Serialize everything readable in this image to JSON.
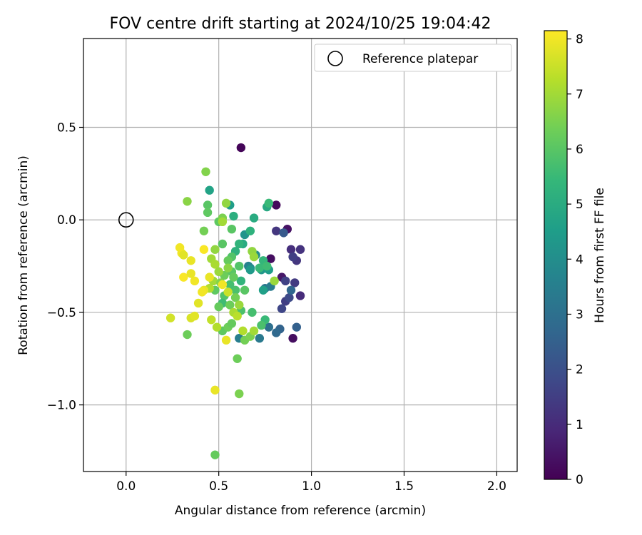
{
  "chart_data": {
    "type": "scatter",
    "title": "FOV centre drift starting at 2024/10/25 19:04:42",
    "xlabel": "Angular distance from reference (arcmin)",
    "ylabel": "Rotation from reference (arcmin)",
    "xlim": [
      -0.23,
      2.11
    ],
    "ylim": [
      -1.36,
      0.98
    ],
    "xticks": [
      0.0,
      0.5,
      1.0,
      1.5,
      2.0
    ],
    "xtick_labels": [
      "0.0",
      "0.5",
      "1.0",
      "1.5",
      "2.0"
    ],
    "yticks": [
      0.5,
      0.0,
      -0.5,
      -1.0
    ],
    "ytick_labels": [
      "0.5",
      "0.0",
      "−0.5",
      "−1.0"
    ],
    "grid": true,
    "legend": {
      "placement": "top-right",
      "entries": [
        "Reference platepar"
      ]
    },
    "reference_point": {
      "x": 0.0,
      "y": 0.0,
      "marker": "open-circle",
      "color": "#000000"
    },
    "colorbar": {
      "label": "Hours from first FF file",
      "range": [
        0,
        8.15
      ],
      "ticks": [
        0,
        1,
        2,
        3,
        4,
        5,
        6,
        7,
        8
      ],
      "tick_labels": [
        "0",
        "1",
        "2",
        "3",
        "4",
        "5",
        "6",
        "7",
        "8"
      ],
      "colormap": "viridis",
      "colormap_stops": [
        "#440154",
        "#482878",
        "#3e4a89",
        "#31688e",
        "#26828e",
        "#1f9e89",
        "#35b779",
        "#6ece58",
        "#b5de2b",
        "#fde725"
      ]
    },
    "points": [
      {
        "x": 0.62,
        "y": 0.39,
        "h": 0.1
      },
      {
        "x": 0.81,
        "y": 0.08,
        "h": 0.2
      },
      {
        "x": 0.87,
        "y": -0.05,
        "h": 0.4
      },
      {
        "x": 0.78,
        "y": -0.21,
        "h": 0.3
      },
      {
        "x": 0.84,
        "y": -0.31,
        "h": 0.5
      },
      {
        "x": 0.9,
        "y": -0.64,
        "h": 0.3
      },
      {
        "x": 0.94,
        "y": -0.16,
        "h": 1.2
      },
      {
        "x": 0.89,
        "y": -0.16,
        "h": 1.1
      },
      {
        "x": 0.92,
        "y": -0.22,
        "h": 1.3
      },
      {
        "x": 0.9,
        "y": -0.2,
        "h": 1.5
      },
      {
        "x": 0.94,
        "y": -0.41,
        "h": 1.0
      },
      {
        "x": 0.91,
        "y": -0.34,
        "h": 1.4
      },
      {
        "x": 0.86,
        "y": -0.33,
        "h": 1.6
      },
      {
        "x": 0.81,
        "y": -0.06,
        "h": 1.3
      },
      {
        "x": 0.86,
        "y": -0.44,
        "h": 1.5
      },
      {
        "x": 0.84,
        "y": -0.48,
        "h": 1.7
      },
      {
        "x": 0.88,
        "y": -0.42,
        "h": 1.8
      },
      {
        "x": 0.85,
        "y": -0.07,
        "h": 2.3
      },
      {
        "x": 0.92,
        "y": -0.58,
        "h": 2.5
      },
      {
        "x": 0.89,
        "y": -0.38,
        "h": 2.7
      },
      {
        "x": 0.83,
        "y": -0.59,
        "h": 2.6
      },
      {
        "x": 0.81,
        "y": -0.61,
        "h": 2.8
      },
      {
        "x": 0.77,
        "y": -0.58,
        "h": 3.0
      },
      {
        "x": 0.75,
        "y": -0.37,
        "h": 3.2
      },
      {
        "x": 0.78,
        "y": -0.36,
        "h": 3.4
      },
      {
        "x": 0.72,
        "y": -0.64,
        "h": 3.3
      },
      {
        "x": 0.61,
        "y": -0.64,
        "h": 3.5
      },
      {
        "x": 0.66,
        "y": -0.25,
        "h": 3.6
      },
      {
        "x": 0.67,
        "y": -0.26,
        "h": 3.8
      },
      {
        "x": 0.7,
        "y": -0.19,
        "h": 4.0
      },
      {
        "x": 0.64,
        "y": -0.08,
        "h": 4.2
      },
      {
        "x": 0.73,
        "y": -0.27,
        "h": 4.3
      },
      {
        "x": 0.77,
        "y": -0.27,
        "h": 4.5
      },
      {
        "x": 0.74,
        "y": -0.38,
        "h": 4.6
      },
      {
        "x": 0.67,
        "y": -0.27,
        "h": 4.4
      },
      {
        "x": 0.56,
        "y": 0.08,
        "h": 4.5
      },
      {
        "x": 0.45,
        "y": 0.16,
        "h": 4.7
      },
      {
        "x": 0.76,
        "y": 0.07,
        "h": 4.9
      },
      {
        "x": 0.69,
        "y": 0.01,
        "h": 5.0
      },
      {
        "x": 0.58,
        "y": 0.02,
        "h": 5.1
      },
      {
        "x": 0.63,
        "y": -0.13,
        "h": 5.0
      },
      {
        "x": 0.67,
        "y": -0.06,
        "h": 5.2
      },
      {
        "x": 0.61,
        "y": -0.13,
        "h": 5.3
      },
      {
        "x": 0.59,
        "y": -0.17,
        "h": 5.2
      },
      {
        "x": 0.62,
        "y": -0.33,
        "h": 5.3
      },
      {
        "x": 0.77,
        "y": 0.09,
        "h": 5.5
      },
      {
        "x": 0.74,
        "y": -0.22,
        "h": 5.4
      },
      {
        "x": 0.72,
        "y": -0.26,
        "h": 5.5
      },
      {
        "x": 0.76,
        "y": -0.25,
        "h": 5.6
      },
      {
        "x": 0.75,
        "y": -0.54,
        "h": 5.5
      },
      {
        "x": 0.68,
        "y": -0.5,
        "h": 5.7
      },
      {
        "x": 0.73,
        "y": -0.57,
        "h": 5.8
      },
      {
        "x": 0.57,
        "y": -0.2,
        "h": 5.9
      },
      {
        "x": 0.57,
        "y": -0.05,
        "h": 6.0
      },
      {
        "x": 0.44,
        "y": 0.08,
        "h": 6.0
      },
      {
        "x": 0.44,
        "y": 0.04,
        "h": 6.1
      },
      {
        "x": 0.5,
        "y": -0.01,
        "h": 6.1
      },
      {
        "x": 0.52,
        "y": -0.13,
        "h": 6.0
      },
      {
        "x": 0.59,
        "y": -0.38,
        "h": 5.8
      },
      {
        "x": 0.64,
        "y": -0.38,
        "h": 6.0
      },
      {
        "x": 0.56,
        "y": -0.35,
        "h": 5.7
      },
      {
        "x": 0.53,
        "y": -0.41,
        "h": 5.9
      },
      {
        "x": 0.52,
        "y": -0.45,
        "h": 5.6
      },
      {
        "x": 0.62,
        "y": -0.49,
        "h": 5.8
      },
      {
        "x": 0.5,
        "y": -0.47,
        "h": 6.2
      },
      {
        "x": 0.48,
        "y": -0.38,
        "h": 6.1
      },
      {
        "x": 0.55,
        "y": -0.22,
        "h": 6.2
      },
      {
        "x": 0.53,
        "y": -0.3,
        "h": 6.3
      },
      {
        "x": 0.57,
        "y": -0.28,
        "h": 6.0
      },
      {
        "x": 0.61,
        "y": -0.25,
        "h": 5.9
      },
      {
        "x": 0.58,
        "y": -0.31,
        "h": 6.2
      },
      {
        "x": 0.59,
        "y": -0.42,
        "h": 6.4
      },
      {
        "x": 0.56,
        "y": -0.46,
        "h": 6.3
      },
      {
        "x": 0.52,
        "y": -0.6,
        "h": 6.1
      },
      {
        "x": 0.55,
        "y": -0.58,
        "h": 6.3
      },
      {
        "x": 0.57,
        "y": -0.56,
        "h": 6.2
      },
      {
        "x": 0.64,
        "y": -0.65,
        "h": 6.4
      },
      {
        "x": 0.67,
        "y": -0.63,
        "h": 6.5
      },
      {
        "x": 0.6,
        "y": -0.75,
        "h": 6.3
      },
      {
        "x": 0.61,
        "y": -0.94,
        "h": 6.5
      },
      {
        "x": 0.48,
        "y": -1.27,
        "h": 6.2
      },
      {
        "x": 0.33,
        "y": -0.62,
        "h": 6.3
      },
      {
        "x": 0.43,
        "y": 0.26,
        "h": 6.6
      },
      {
        "x": 0.33,
        "y": 0.1,
        "h": 6.7
      },
      {
        "x": 0.54,
        "y": 0.09,
        "h": 6.8
      },
      {
        "x": 0.42,
        "y": -0.06,
        "h": 6.4
      },
      {
        "x": 0.52,
        "y": 0.01,
        "h": 6.5
      },
      {
        "x": 0.52,
        "y": -0.01,
        "h": 7.0
      },
      {
        "x": 0.48,
        "y": -0.16,
        "h": 6.8
      },
      {
        "x": 0.46,
        "y": -0.21,
        "h": 7.0
      },
      {
        "x": 0.48,
        "y": -0.24,
        "h": 7.1
      },
      {
        "x": 0.5,
        "y": -0.28,
        "h": 6.9
      },
      {
        "x": 0.45,
        "y": -0.37,
        "h": 7.2
      },
      {
        "x": 0.47,
        "y": -0.33,
        "h": 7.0
      },
      {
        "x": 0.51,
        "y": -0.34,
        "h": 6.6
      },
      {
        "x": 0.55,
        "y": -0.26,
        "h": 6.7
      },
      {
        "x": 0.68,
        "y": -0.17,
        "h": 6.8
      },
      {
        "x": 0.69,
        "y": -0.2,
        "h": 6.9
      },
      {
        "x": 0.8,
        "y": -0.33,
        "h": 6.9
      },
      {
        "x": 0.58,
        "y": -0.5,
        "h": 7.1
      },
      {
        "x": 0.61,
        "y": -0.46,
        "h": 6.9
      },
      {
        "x": 0.69,
        "y": -0.6,
        "h": 7.0
      },
      {
        "x": 0.63,
        "y": -0.6,
        "h": 7.2
      },
      {
        "x": 0.6,
        "y": -0.52,
        "h": 7.3
      },
      {
        "x": 0.46,
        "y": -0.54,
        "h": 7.4
      },
      {
        "x": 0.49,
        "y": -0.58,
        "h": 7.2
      },
      {
        "x": 0.54,
        "y": -0.65,
        "h": 7.9
      },
      {
        "x": 0.48,
        "y": -0.92,
        "h": 7.9
      },
      {
        "x": 0.24,
        "y": -0.53,
        "h": 7.6
      },
      {
        "x": 0.35,
        "y": -0.53,
        "h": 7.7
      },
      {
        "x": 0.37,
        "y": -0.52,
        "h": 7.8
      },
      {
        "x": 0.39,
        "y": -0.45,
        "h": 7.8
      },
      {
        "x": 0.42,
        "y": -0.38,
        "h": 7.9
      },
      {
        "x": 0.41,
        "y": -0.39,
        "h": 8.0
      },
      {
        "x": 0.37,
        "y": -0.33,
        "h": 8.0
      },
      {
        "x": 0.31,
        "y": -0.31,
        "h": 8.1
      },
      {
        "x": 0.35,
        "y": -0.29,
        "h": 7.9
      },
      {
        "x": 0.45,
        "y": -0.31,
        "h": 7.9
      },
      {
        "x": 0.3,
        "y": -0.18,
        "h": 8.0
      },
      {
        "x": 0.29,
        "y": -0.15,
        "h": 8.0
      },
      {
        "x": 0.31,
        "y": -0.19,
        "h": 7.8
      },
      {
        "x": 0.35,
        "y": -0.22,
        "h": 7.9
      },
      {
        "x": 0.42,
        "y": -0.16,
        "h": 8.1
      },
      {
        "x": 0.52,
        "y": -0.35,
        "h": 8.0
      },
      {
        "x": 0.55,
        "y": -0.39,
        "h": 7.5
      }
    ]
  }
}
